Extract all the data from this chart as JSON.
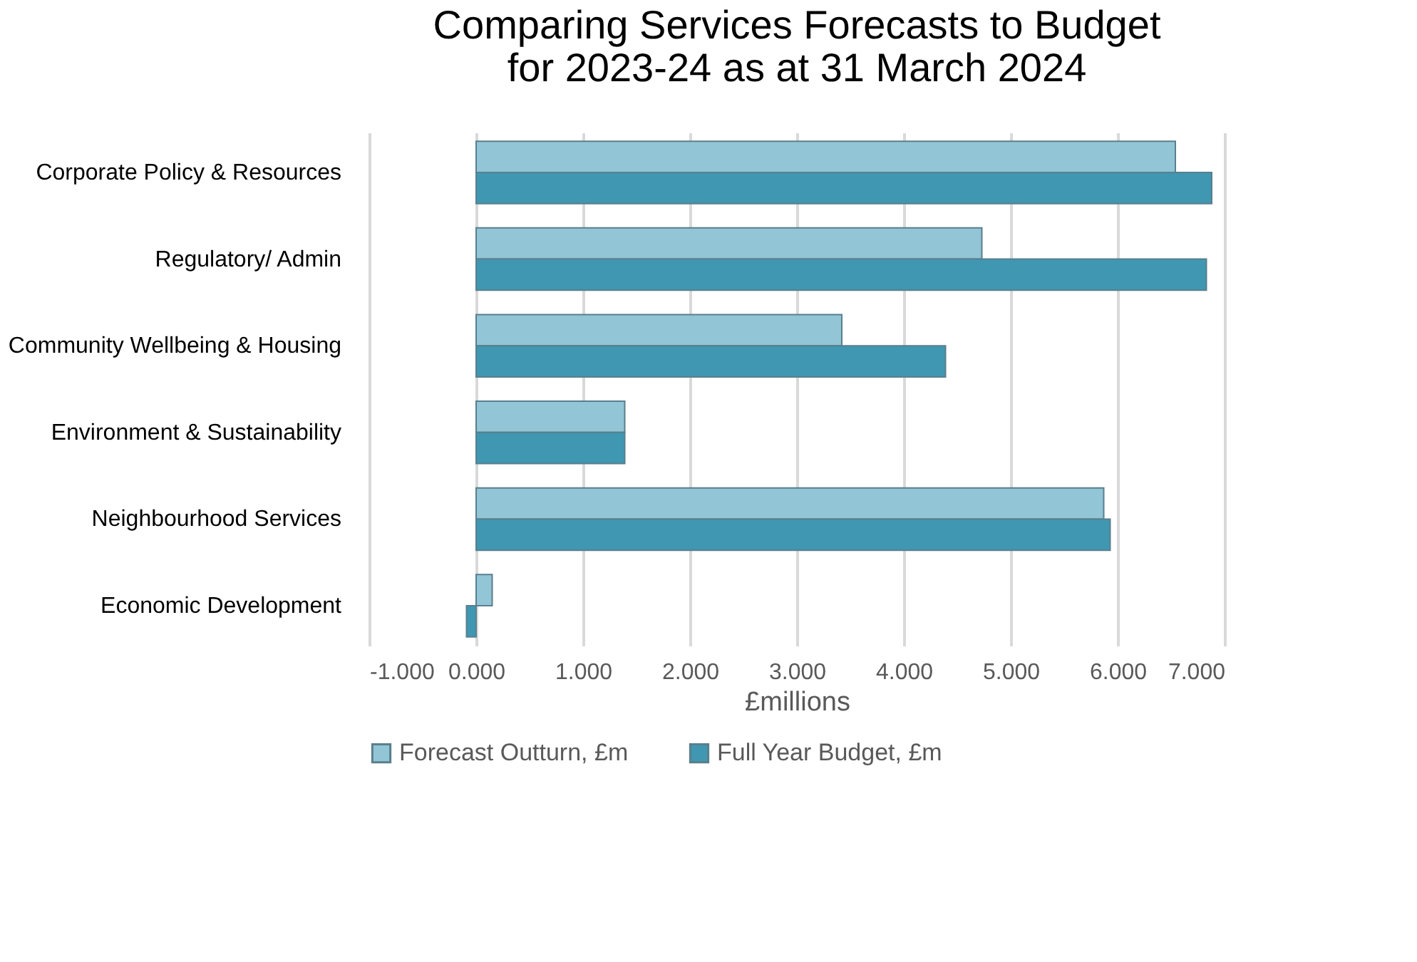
{
  "chart_data": {
    "type": "bar",
    "orientation": "horizontal",
    "title": "Comparing Services Forecasts to Budget for 2023-24 as at 31 March 2024",
    "xlabel": "£millions",
    "categories": [
      "Corporate Policy & Resources",
      "Regulatory/ Admin",
      "Community Wellbeing & Housing",
      "Environment & Sustainability",
      "Neighbourhood Services",
      "Economic Development"
    ],
    "series": [
      {
        "name": "Forecast Outturn, £m",
        "color": "#92c5d6",
        "values": [
          6.54,
          4.73,
          3.42,
          1.39,
          5.87,
          0.15
        ]
      },
      {
        "name": "Full Year Budget, £m",
        "color": "#3f97b2",
        "values": [
          6.88,
          6.83,
          4.39,
          1.39,
          5.93,
          -0.09
        ]
      }
    ],
    "xlim": [
      -1,
      7
    ],
    "xticks": [
      {
        "value": -1,
        "label": "-1.000"
      },
      {
        "value": 0,
        "label": "0.000"
      },
      {
        "value": 1,
        "label": "1.000"
      },
      {
        "value": 2,
        "label": "2.000"
      },
      {
        "value": 3,
        "label": "3.000"
      },
      {
        "value": 4,
        "label": "4.000"
      },
      {
        "value": 5,
        "label": "5.000"
      },
      {
        "value": 6,
        "label": "6.000"
      },
      {
        "value": 7,
        "label": "7.000"
      }
    ],
    "grid": "x",
    "legend": "bottom"
  }
}
